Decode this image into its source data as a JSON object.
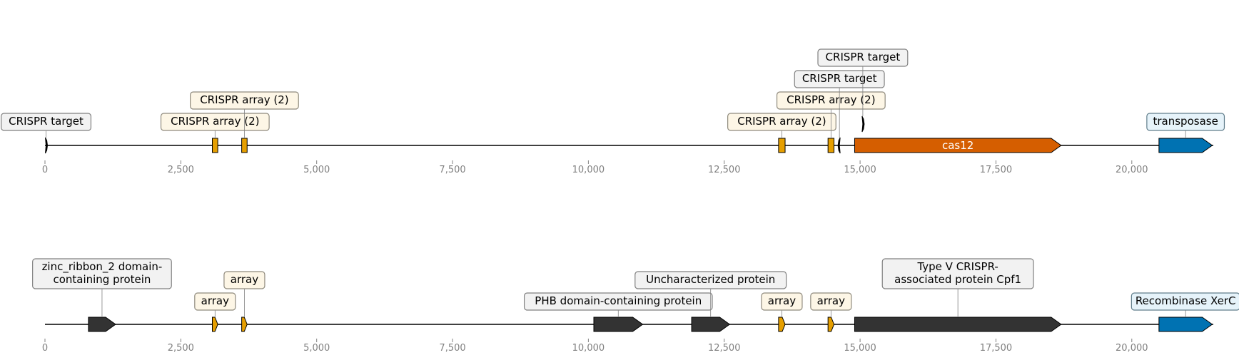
{
  "tracks": [
    {
      "xlim": [
        0,
        21500
      ],
      "ticks": [
        {
          "value": 0,
          "label": "0"
        },
        {
          "value": 2500,
          "label": "2,500"
        },
        {
          "value": 5000,
          "label": "5,000"
        },
        {
          "value": 7500,
          "label": "7,500"
        },
        {
          "value": 10000,
          "label": "10,000"
        },
        {
          "value": 12500,
          "label": "12,500"
        },
        {
          "value": 15000,
          "label": "15,000"
        },
        {
          "value": 17500,
          "label": "17,500"
        },
        {
          "value": 20000,
          "label": "20,000"
        }
      ],
      "features": [
        {
          "name": "target-0",
          "start": 0,
          "end": 40,
          "strand": 1,
          "kind": "thin",
          "color": "#000000",
          "level": 0,
          "label": "CRISPR target",
          "box_fill": "#f2f2f2",
          "box_edge": "#808080"
        },
        {
          "name": "array-3100",
          "start": 3080,
          "end": 3180,
          "strand": 0,
          "kind": "block",
          "color": "#e69f00",
          "level": 0,
          "label": "CRISPR array (2)",
          "box_fill": "#fdf6e6",
          "box_edge": "#8f8a7d"
        },
        {
          "name": "array-3650",
          "start": 3620,
          "end": 3720,
          "strand": 0,
          "kind": "block",
          "color": "#e69f00",
          "level": 1,
          "label": "CRISPR array (2)",
          "box_fill": "#fdf6e6",
          "box_edge": "#8f8a7d"
        },
        {
          "name": "array-13550",
          "start": 13500,
          "end": 13620,
          "strand": 0,
          "kind": "block",
          "color": "#e69f00",
          "level": 0,
          "label": "CRISPR array (2)",
          "box_fill": "#fdf6e6",
          "box_edge": "#8f8a7d"
        },
        {
          "name": "array-14450",
          "start": 14410,
          "end": 14520,
          "strand": 0,
          "kind": "block",
          "color": "#e69f00",
          "level": 1,
          "label": "CRISPR array (2)",
          "box_fill": "#fdf6e6",
          "box_edge": "#8f8a7d"
        },
        {
          "name": "target-14620",
          "start": 14590,
          "end": 14650,
          "strand": -1,
          "kind": "thin",
          "color": "#000000",
          "level": 2,
          "label": "CRISPR target",
          "box_fill": "#f2f2f2",
          "box_edge": "#808080"
        },
        {
          "name": "target-15050",
          "start": 15030,
          "end": 15070,
          "strand": 1,
          "kind": "thin",
          "color": "#000000",
          "level": 3,
          "label": "CRISPR target",
          "box_fill": "#f2f2f2",
          "box_edge": "#808080",
          "raised": true
        },
        {
          "name": "cas12",
          "start": 14900,
          "end": 18700,
          "strand": 1,
          "kind": "gene",
          "color": "#d55e00",
          "inner_label": "cas12"
        },
        {
          "name": "transposase",
          "start": 20500,
          "end": 21480,
          "strand": 1,
          "kind": "gene",
          "color": "#0072b2",
          "level": 0,
          "label": "transposase",
          "box_fill": "#e6f3fa",
          "box_edge": "#607d8b"
        }
      ]
    },
    {
      "xlim": [
        0,
        21500
      ],
      "ticks": [
        {
          "value": 0,
          "label": "0"
        },
        {
          "value": 2500,
          "label": "2,500"
        },
        {
          "value": 5000,
          "label": "5,000"
        },
        {
          "value": 7500,
          "label": "7,500"
        },
        {
          "value": 10000,
          "label": "10,000"
        },
        {
          "value": 12500,
          "label": "12,500"
        },
        {
          "value": 15000,
          "label": "15,000"
        },
        {
          "value": 17500,
          "label": "17,500"
        },
        {
          "value": 20000,
          "label": "20,000"
        }
      ],
      "features": [
        {
          "name": "zinc-ribbon",
          "start": 800,
          "end": 1300,
          "strand": 1,
          "kind": "gene",
          "color": "#333333",
          "level": 1,
          "label": "zinc_ribbon_2 domain-\ncontaining protein",
          "box_fill": "#f2f2f2",
          "box_edge": "#808080"
        },
        {
          "name": "array-3100",
          "start": 3080,
          "end": 3180,
          "strand": 1,
          "kind": "block",
          "color": "#e69f00",
          "level": 0,
          "label": "array",
          "box_fill": "#fdf6e6",
          "box_edge": "#8f8a7d"
        },
        {
          "name": "array-3650",
          "start": 3620,
          "end": 3720,
          "strand": 1,
          "kind": "block",
          "color": "#e69f00",
          "level": 1,
          "label": "array",
          "box_fill": "#fdf6e6",
          "box_edge": "#8f8a7d"
        },
        {
          "name": "phb-domain",
          "start": 10100,
          "end": 11000,
          "strand": 1,
          "kind": "gene",
          "color": "#333333",
          "level": 0,
          "label": "PHB domain-containing protein",
          "box_fill": "#f2f2f2",
          "box_edge": "#808080"
        },
        {
          "name": "uncharacterized",
          "start": 11900,
          "end": 12600,
          "strand": 1,
          "kind": "gene",
          "color": "#333333",
          "level": 1,
          "label": "Uncharacterized protein",
          "box_fill": "#f2f2f2",
          "box_edge": "#808080"
        },
        {
          "name": "array-13550",
          "start": 13500,
          "end": 13620,
          "strand": 1,
          "kind": "block",
          "color": "#e69f00",
          "level": 0,
          "label": "array",
          "box_fill": "#fdf6e6",
          "box_edge": "#8f8a7d"
        },
        {
          "name": "array-14450",
          "start": 14410,
          "end": 14520,
          "strand": 1,
          "kind": "block",
          "color": "#e69f00",
          "level": 0,
          "label": "array",
          "box_fill": "#fdf6e6",
          "box_edge": "#8f8a7d"
        },
        {
          "name": "cpf1",
          "start": 14900,
          "end": 18700,
          "strand": 1,
          "kind": "gene",
          "color": "#333333",
          "level": 1,
          "label": "Type V CRISPR-\nassociated protein Cpf1",
          "box_fill": "#f2f2f2",
          "box_edge": "#808080"
        },
        {
          "name": "xerc",
          "start": 20500,
          "end": 21480,
          "strand": 1,
          "kind": "gene",
          "color": "#0072b2",
          "level": 0,
          "label": "Recombinase XerC",
          "box_fill": "#e6f3fa",
          "box_edge": "#607d8b"
        }
      ]
    }
  ]
}
